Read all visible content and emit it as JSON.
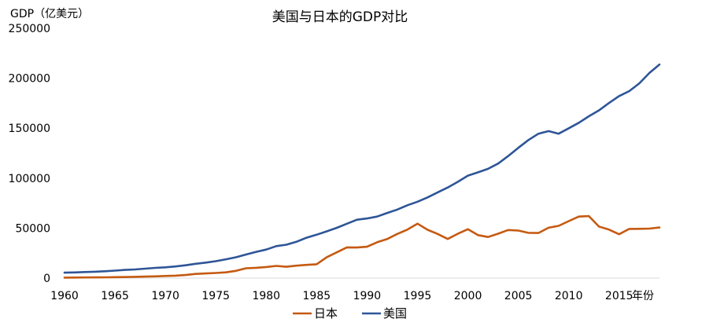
{
  "chart_data": {
    "type": "line",
    "title": "美国与日本的GDP对比",
    "ylabel": "GDP（亿美元）",
    "xlabel": "年份",
    "xlim": [
      1960,
      2019
    ],
    "ylim": [
      0,
      250000
    ],
    "yticks": [
      "0",
      "50000",
      "100000",
      "150000",
      "200000",
      "250000"
    ],
    "xticks": [
      "1960",
      "1965",
      "1970",
      "1975",
      "1980",
      "1985",
      "1990",
      "1995",
      "2000",
      "2005",
      "2010",
      "2015"
    ],
    "grid": false,
    "legend": "bottom",
    "x": [
      1960,
      1961,
      1962,
      1963,
      1964,
      1965,
      1966,
      1967,
      1968,
      1969,
      1970,
      1971,
      1972,
      1973,
      1974,
      1975,
      1976,
      1977,
      1978,
      1979,
      1980,
      1981,
      1982,
      1983,
      1984,
      1985,
      1986,
      1987,
      1988,
      1989,
      1990,
      1991,
      1992,
      1993,
      1994,
      1995,
      1996,
      1997,
      1998,
      1999,
      2000,
      2001,
      2002,
      2003,
      2004,
      2005,
      2006,
      2007,
      2008,
      2009,
      2010,
      2011,
      2012,
      2013,
      2014,
      2015,
      2016,
      2017,
      2018,
      2019
    ],
    "series": [
      {
        "name": "日本",
        "color": "#C55A11",
        "values": [
          443,
          535,
          609,
          697,
          811,
          910,
          1044,
          1239,
          1461,
          1701,
          2127,
          2402,
          3081,
          4173,
          4652,
          5121,
          5767,
          7209,
          9816,
          10309,
          11053,
          12181,
          11345,
          12437,
          13189,
          13852,
          20951,
          25796,
          30714,
          30548,
          31330,
          35845,
          39088,
          44149,
          48504,
          54491,
          48336,
          44147,
          39141,
          44357,
          48875,
          43035,
          41151,
          44457,
          48151,
          47554,
          45303,
          45152,
          50379,
          52314,
          57001,
          61575,
          62032,
          51557,
          48504,
          43895,
          49228,
          49306,
          49548,
          50650
        ]
      },
      {
        "name": "美国",
        "color": "#2E5597",
        "values": [
          5433,
          5633,
          6051,
          6386,
          6858,
          7437,
          8150,
          8617,
          9425,
          10199,
          10737,
          11628,
          12825,
          14285,
          15488,
          16889,
          18776,
          20860,
          23562,
          26273,
          28573,
          31977,
          33434,
          36342,
          40373,
          43390,
          46791,
          50307,
          54398,
          58391,
          59631,
          61582,
          65202,
          68585,
          72871,
          76399,
          80732,
          85773,
          90627,
          96305,
          102523,
          105818,
          109363,
          114584,
          122135,
          130369,
          138149,
          144517,
          147128,
          144487,
          149921,
          155426,
          161970,
          167849,
          175217,
          182193,
          187071,
          194855,
          205272,
          213726
        ]
      }
    ]
  }
}
